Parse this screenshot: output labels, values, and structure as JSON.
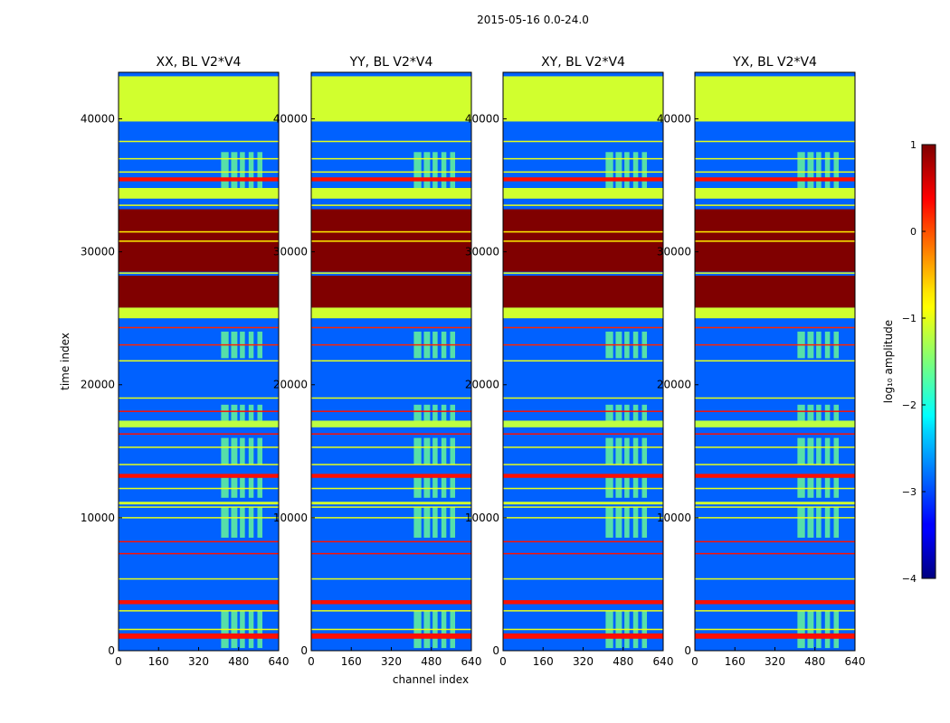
{
  "figure": {
    "suptitle": "2015-05-16 0.0-24.0",
    "xlabel": "channel index",
    "ylabel": "time index"
  },
  "chart_data": {
    "type": "heatmap",
    "x_ticks": [
      0,
      160,
      320,
      480,
      640
    ],
    "y_ticks": [
      0,
      10000,
      20000,
      30000,
      40000
    ],
    "xlim": [
      0,
      640
    ],
    "ylim": [
      0,
      43500
    ],
    "panels": [
      {
        "title": "XX, BL V2*V4"
      },
      {
        "title": "YY, BL V2*V4"
      },
      {
        "title": "XY, BL V2*V4"
      },
      {
        "title": "YX, BL V2*V4"
      }
    ],
    "colorbar": {
      "label": "log₁₀ amplitude",
      "range": [
        -4,
        1
      ],
      "ticks": [
        "1",
        "0",
        "−1",
        "−2",
        "−3",
        "−4"
      ],
      "colormap": "jet"
    },
    "bands": [
      {
        "y0": 39800,
        "y1": 43200,
        "level": -1.1
      },
      {
        "y0": 35300,
        "y1": 35600,
        "level": 0.3
      },
      {
        "y0": 34000,
        "y1": 34800,
        "level": -1.1
      },
      {
        "y0": 28500,
        "y1": 33200,
        "level": 1.0
      },
      {
        "y0": 25800,
        "y1": 28200,
        "level": 1.0
      },
      {
        "y0": 25000,
        "y1": 25800,
        "level": -1.1
      },
      {
        "y0": 16800,
        "y1": 17300,
        "level": -1.2
      },
      {
        "y0": 13000,
        "y1": 13300,
        "level": 0.3
      },
      {
        "y0": 11000,
        "y1": 11200,
        "level": -1.1
      },
      {
        "y0": 3500,
        "y1": 3800,
        "level": 0.3
      },
      {
        "y0": 900,
        "y1": 1300,
        "level": 0.3
      }
    ],
    "lines": [
      {
        "y": 38300,
        "level": -1.0
      },
      {
        "y": 37000,
        "level": -1.0
      },
      {
        "y": 36000,
        "level": -1.0
      },
      {
        "y": 33500,
        "level": -1.0
      },
      {
        "y": 31500,
        "level": -0.8
      },
      {
        "y": 30800,
        "level": -0.8
      },
      {
        "y": 28400,
        "level": -1.0
      },
      {
        "y": 24300,
        "level": 0.2
      },
      {
        "y": 23000,
        "level": 0.2
      },
      {
        "y": 21800,
        "level": -1.0
      },
      {
        "y": 19000,
        "level": -1.0
      },
      {
        "y": 18000,
        "level": 0.3
      },
      {
        "y": 16300,
        "level": 0.3
      },
      {
        "y": 15300,
        "level": -1.0
      },
      {
        "y": 14000,
        "level": -1.0
      },
      {
        "y": 12200,
        "level": -1.0
      },
      {
        "y": 10800,
        "level": -1.0
      },
      {
        "y": 10000,
        "level": -1.0
      },
      {
        "y": 8200,
        "level": 0.3
      },
      {
        "y": 7300,
        "level": 0.3
      },
      {
        "y": 5400,
        "level": -1.0
      },
      {
        "y": 3000,
        "level": -1.0
      },
      {
        "y": 1600,
        "level": -1.0
      }
    ],
    "rfi_columns": [
      {
        "x0": 410,
        "x1": 440
      },
      {
        "x0": 450,
        "x1": 475
      },
      {
        "x0": 485,
        "x1": 505
      },
      {
        "x0": 520,
        "x1": 540
      },
      {
        "x0": 555,
        "x1": 575
      }
    ],
    "rfi_segments": [
      {
        "y0": 34800,
        "y1": 37500
      },
      {
        "y0": 22000,
        "y1": 24000
      },
      {
        "y0": 17300,
        "y1": 18500
      },
      {
        "y0": 14000,
        "y1": 16000
      },
      {
        "y0": 11500,
        "y1": 13000
      },
      {
        "y0": 8500,
        "y1": 10800
      },
      {
        "y0": 200,
        "y1": 3000
      }
    ],
    "background_level": -2.9
  }
}
